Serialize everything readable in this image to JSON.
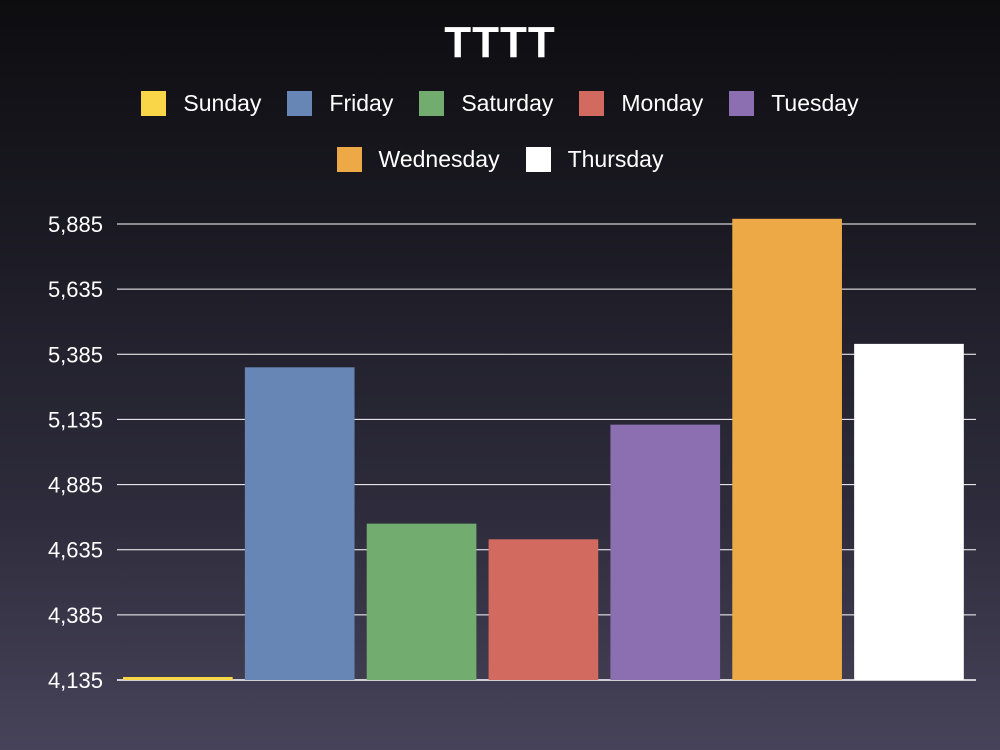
{
  "chart_data": {
    "type": "bar",
    "title": "TTTT",
    "xlabel": "",
    "ylabel": "",
    "categories": [
      "Sunday",
      "Friday",
      "Saturday",
      "Monday",
      "Tuesday",
      "Wednesday",
      "Thursday"
    ],
    "values": [
      4135,
      5335,
      4735,
      4675,
      5115,
      5905,
      5425
    ],
    "colors": [
      "#f9d648",
      "#6786b6",
      "#72ad6f",
      "#d36a60",
      "#8b6fb0",
      "#eda945",
      "#ffffff"
    ],
    "ylim": [
      4135,
      5885
    ],
    "yticks": [
      "4,135",
      "4,385",
      "4,635",
      "4,885",
      "5,135",
      "5,385",
      "5,635",
      "5,885"
    ],
    "ytick_values": [
      4135,
      4385,
      4635,
      4885,
      5135,
      5385,
      5635,
      5885
    ],
    "grid": true,
    "legend": {
      "position": "top",
      "rows": [
        [
          "Sunday",
          "Friday",
          "Saturday",
          "Monday",
          "Tuesday"
        ],
        [
          "Wednesday",
          "Thursday"
        ]
      ]
    }
  }
}
